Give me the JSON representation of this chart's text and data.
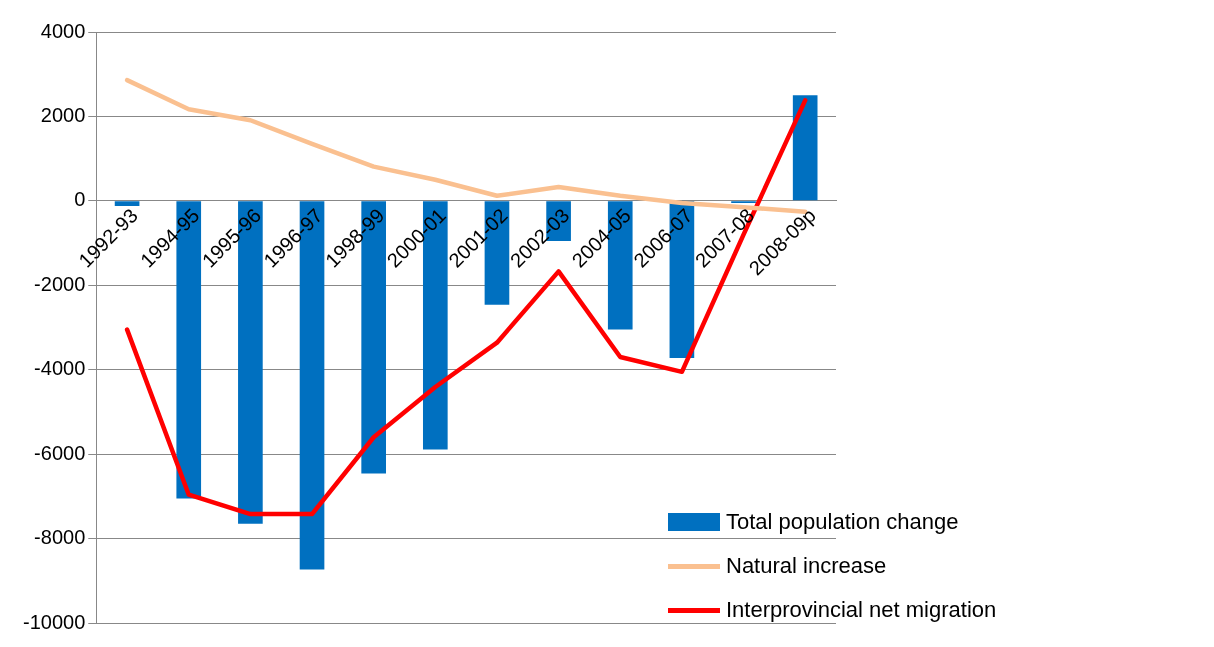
{
  "chart_data": {
    "type": "bar",
    "categories": [
      "1992-93",
      "1994-95",
      "1995-96",
      "1996-97",
      "1998-99",
      "2000-01",
      "2001-02",
      "2002-03",
      "2004-05",
      "2006-07",
      "2007-08",
      "2008-09p"
    ],
    "series": [
      {
        "name": "Total population change",
        "color": "#0070c0",
        "values": [
          -120,
          -7050,
          -7650,
          -8730,
          -6460,
          -5890,
          -2460,
          -950,
          -3050,
          -3720,
          -50,
          2500
        ]
      },
      {
        "name": "Natural increase",
        "type": "line",
        "color": "#fac090",
        "values": [
          2860,
          2170,
          1910,
          1350,
          810,
          500,
          120,
          330,
          120,
          -50,
          -150,
          -260
        ]
      },
      {
        "name": "Interprovincial net migration",
        "type": "line",
        "color": "#ff0000",
        "values": [
          -3050,
          -6960,
          -7420,
          -7420,
          -5600,
          -4410,
          -3360,
          -1670,
          -3700,
          -4050,
          -800,
          2380
        ]
      }
    ],
    "ylim": [
      -10000,
      4000
    ],
    "yticks": [
      -10000,
      -8000,
      -6000,
      -4000,
      -2000,
      0,
      2000,
      4000
    ],
    "grid": "y",
    "legend": "bottom right",
    "marker": "none",
    "line_style": "solid"
  }
}
